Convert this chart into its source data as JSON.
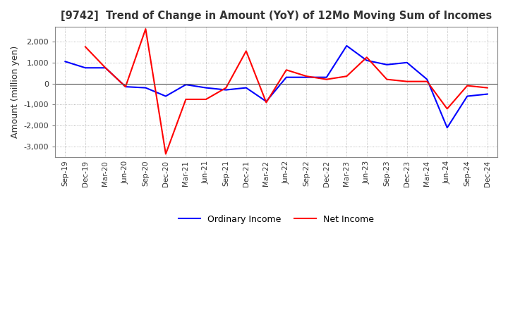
{
  "title": "[9742]  Trend of Change in Amount (YoY) of 12Mo Moving Sum of Incomes",
  "ylabel": "Amount (million yen)",
  "ylim": [
    -3500,
    2700
  ],
  "yticks": [
    -3000,
    -2000,
    -1000,
    0,
    1000,
    2000
  ],
  "background_color": "#ffffff",
  "plot_bg_color": "#ffffff",
  "grid_color": "#aaaaaa",
  "ordinary_income_color": "#0000ff",
  "net_income_color": "#ff0000",
  "x_labels": [
    "Sep-19",
    "Dec-19",
    "Mar-20",
    "Jun-20",
    "Sep-20",
    "Dec-20",
    "Mar-21",
    "Jun-21",
    "Sep-21",
    "Dec-21",
    "Mar-22",
    "Jun-22",
    "Sep-22",
    "Dec-22",
    "Mar-23",
    "Jun-23",
    "Sep-23",
    "Dec-23",
    "Mar-24",
    "Jun-24",
    "Sep-24",
    "Dec-24"
  ],
  "ordinary_income": [
    1050,
    750,
    750,
    -150,
    -200,
    -600,
    -50,
    -200,
    -300,
    -200,
    -850,
    300,
    300,
    300,
    1800,
    1100,
    900,
    1000,
    200,
    -2100,
    -600,
    -500
  ],
  "net_income": [
    null,
    1750,
    750,
    -150,
    2600,
    -3350,
    -750,
    -750,
    -200,
    1550,
    -900,
    650,
    350,
    200,
    350,
    1250,
    200,
    100,
    100,
    -1200,
    -100,
    -200
  ]
}
